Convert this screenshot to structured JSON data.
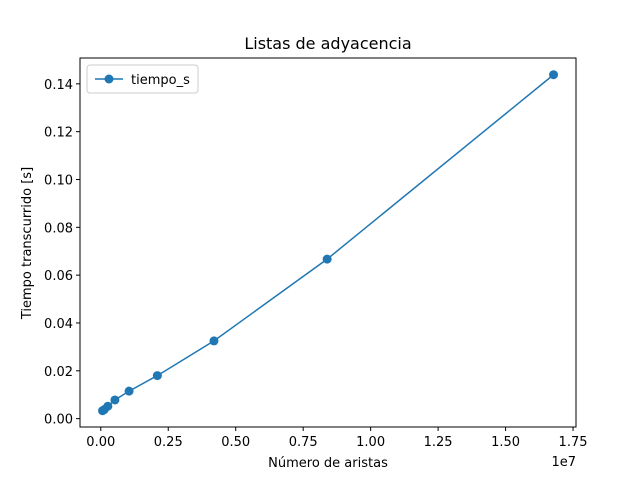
{
  "chart_data": {
    "type": "line",
    "title": "Listas de adyacencia",
    "x_label": "Número de aristas",
    "y_label": "Tiempo transcurrido [s]",
    "x_offset_label": "1e7",
    "x": [
      65536,
      131072,
      262144,
      524288,
      1048576,
      2097152,
      4194304,
      8388608,
      16777216
    ],
    "series": [
      {
        "name": "tiempo_s",
        "color": "#1f77b4",
        "values": [
          0.0033,
          0.0038,
          0.0052,
          0.0078,
          0.0115,
          0.018,
          0.0325,
          0.0667,
          0.1438
        ]
      }
    ],
    "xlim": [
      -770000,
      17610000
    ],
    "xticks": [
      {
        "value": 0,
        "label": "0.00"
      },
      {
        "value": 2500000,
        "label": "0.25"
      },
      {
        "value": 5000000,
        "label": "0.50"
      },
      {
        "value": 7500000,
        "label": "0.75"
      },
      {
        "value": 10000000,
        "label": "1.00"
      },
      {
        "value": 12500000,
        "label": "1.25"
      },
      {
        "value": 15000000,
        "label": "1.50"
      },
      {
        "value": 17500000,
        "label": "1.75"
      }
    ],
    "ylim": [
      -0.0035,
      0.1508
    ],
    "yticks": [
      {
        "value": 0,
        "label": "0.00"
      },
      {
        "value": 0.02,
        "label": "0.02"
      },
      {
        "value": 0.04,
        "label": "0.04"
      },
      {
        "value": 0.06,
        "label": "0.06"
      },
      {
        "value": 0.08,
        "label": "0.08"
      },
      {
        "value": 0.1,
        "label": "0.10"
      },
      {
        "value": 0.12,
        "label": "0.12"
      },
      {
        "value": 0.14,
        "label": "0.14"
      }
    ],
    "legend": "upper left",
    "grid": false
  }
}
